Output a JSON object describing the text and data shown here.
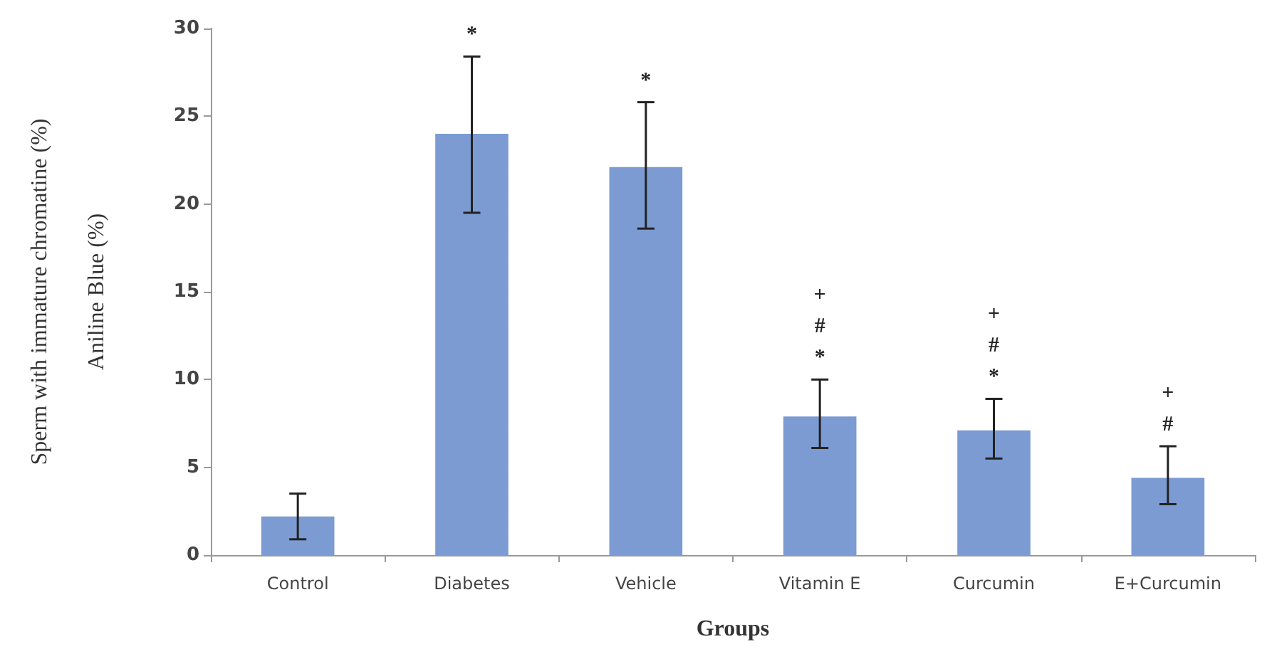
{
  "chart_data": {
    "type": "bar",
    "xlabel": "Groups",
    "ylabel": "Sperm with immature chromatine (%)\nAniline Blue (%)",
    "categories": [
      "Control",
      "Diabetes",
      "Vehicle",
      "Vitamin E",
      "Curcumin",
      "E+Curcumin"
    ],
    "values": [
      2.2,
      24,
      22.1,
      7.9,
      7.1,
      4.4
    ],
    "errors": [
      [
        0.9,
        3.5
      ],
      [
        19.5,
        28.4
      ],
      [
        18.6,
        25.8
      ],
      [
        6.1,
        10
      ],
      [
        5.5,
        8.9
      ],
      [
        2.9,
        6.2
      ]
    ],
    "color": "#7b9bd2",
    "ylim": [
      0,
      30
    ],
    "yticks": [
      0,
      5,
      10,
      15,
      20,
      25,
      30
    ],
    "grid": false,
    "annotations": [
      {
        "text": "*",
        "x": "Diabetes",
        "y": 28.4
      },
      {
        "text": "*",
        "x": "Vehicle",
        "y": 25.8
      },
      {
        "text": "+\n#\n*",
        "x": "Vitamin E",
        "y": 10
      },
      {
        "text": "+\n#\n*",
        "x": "Curcumin",
        "y": 8.9
      },
      {
        "text": "+\n#",
        "x": "E+Curcumin",
        "y": 6.2
      }
    ]
  }
}
